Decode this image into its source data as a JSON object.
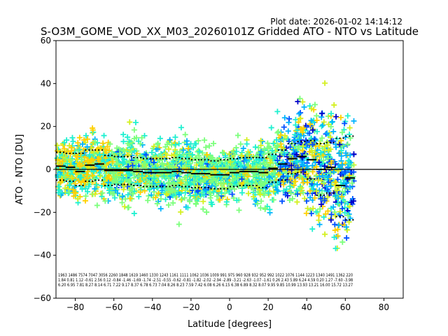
{
  "plot_date": "Plot date: 2026-01-02 14:14:12",
  "chart_data": {
    "type": "scatter",
    "title": "S-O3M_GOME_VOD_XX_M03_20260101Z Gridded ATO - NTO vs Latitude",
    "xlabel": "Latitude [degrees]",
    "ylabel": "ATO - NTO [DU]",
    "xlim": [
      -90,
      90
    ],
    "ylim": [
      -60,
      60
    ],
    "xticks": [
      -80,
      -60,
      -40,
      -20,
      0,
      20,
      40,
      60,
      80
    ],
    "yticks": [
      -60,
      -40,
      -20,
      0,
      20,
      40,
      60
    ],
    "zero_line": 0,
    "marker": "+",
    "colormap": [
      "#0000c8",
      "#0050ff",
      "#00b4ff",
      "#20f0d0",
      "#7cff7c",
      "#d4f020",
      "#ffd000"
    ],
    "bins": {
      "lat": [
        -87.5,
        -82.5,
        -77.5,
        -72.5,
        -67.5,
        -62.5,
        -57.5,
        -52.5,
        -47.5,
        -42.5,
        -37.5,
        -32.5,
        -27.5,
        -22.5,
        -17.5,
        -12.5,
        -7.5,
        -2.5,
        2.5,
        7.5,
        12.5,
        17.5,
        22.5,
        27.5,
        32.5,
        37.5,
        42.5,
        47.5,
        52.5,
        57.5,
        62.5
      ],
      "mean": [
        1.5,
        1.0,
        -1.0,
        2.0,
        2.5,
        -0.5,
        -0.5,
        -0.5,
        -1.0,
        -1.5,
        -1.5,
        -1.5,
        -1.0,
        -1.5,
        -2.0,
        -2.0,
        -2.5,
        -2.5,
        -1.5,
        -1.0,
        -1.0,
        -1.5,
        0.5,
        2.5,
        5.0,
        6.0,
        4.5,
        0.0,
        1.0,
        -7.5,
        -4.0
      ],
      "upper": [
        8.0,
        7.5,
        7.5,
        9.0,
        9.0,
        6.5,
        6.0,
        6.0,
        5.5,
        5.0,
        5.0,
        5.0,
        5.5,
        5.0,
        4.5,
        4.5,
        4.0,
        4.5,
        5.0,
        5.5,
        5.5,
        5.5,
        7.0,
        9.0,
        12.0,
        13.0,
        13.5,
        12.0,
        12.5,
        14.5,
        15.5
      ],
      "lower": [
        -5.0,
        -5.5,
        -7.5,
        -5.5,
        -5.0,
        -7.5,
        -7.0,
        -7.0,
        -7.5,
        -8.0,
        -8.0,
        -8.0,
        -7.5,
        -8.0,
        -8.5,
        -8.5,
        -9.0,
        -9.0,
        -8.0,
        -7.5,
        -7.5,
        -8.5,
        -6.0,
        -5.0,
        -2.0,
        -1.5,
        -4.5,
        -12.0,
        -11.0,
        -22.0,
        -23.5
      ]
    },
    "stats_text": {
      "counts": "1963 1486 7574 7047 3056 2260 1848 1619 1460 1330 1243 1161 1111 1062 1036 1009 991 975 960 928 932 952 992 1022 1076 1144 1223 1340 1491 1362 220",
      "means": "1.84 0.81 1.12 -0.61 2.56 0.12 -0.84 -1.46 -1.69 -1.74 -2.51 -0.55 -0.62 -0.81 -1.82 -2.02 -2.94 -2.89 -3.21 -2.63 -1.07 -1.61 0.26 2.43 5.89 6.24 4.59 0.20 1.27 -7.60 -3.98",
      "stds": "6.20 6.95 7.81 8.27 8.14 6.71 7.22 9.17 8.37 6.78 6.73 7.04 8.26 8.23 7.59 7.42 6.08 6.26 6.15 6.38 6.89 8.32 8.07 9.95 9.85 10.99 13.93 13.21 16.00 15.72 13.27"
    }
  }
}
